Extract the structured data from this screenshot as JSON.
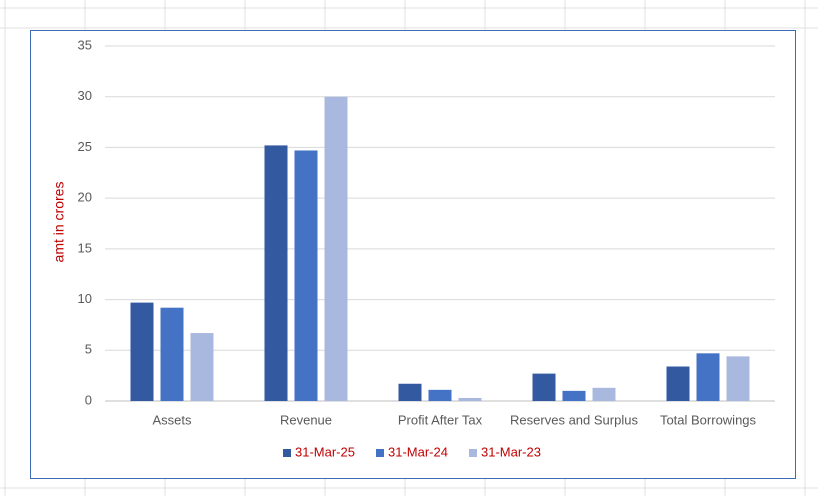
{
  "chart_data": {
    "type": "bar",
    "y_label": "amt in crores",
    "categories": [
      "Assets",
      "Revenue",
      "Profit After Tax",
      "Reserves and Surplus",
      "Total Borrowings"
    ],
    "series": [
      {
        "name": "31-Mar-25",
        "color": "#335aa1",
        "values": [
          9.7,
          25.2,
          1.7,
          2.7,
          3.4
        ]
      },
      {
        "name": "31-Mar-24",
        "color": "#4472c4",
        "values": [
          9.2,
          24.7,
          1.1,
          1.0,
          4.7
        ]
      },
      {
        "name": "31-Mar-23",
        "color": "#a9b8de",
        "values": [
          6.7,
          30.0,
          0.3,
          1.3,
          4.4
        ]
      }
    ],
    "ylim": [
      0,
      35
    ],
    "yticks": [
      0,
      5,
      10,
      15,
      20,
      25,
      30,
      35
    ],
    "grid": true,
    "legend": "bottom",
    "legend_text_color": "#c00000",
    "y_label_color": "#c00000"
  }
}
